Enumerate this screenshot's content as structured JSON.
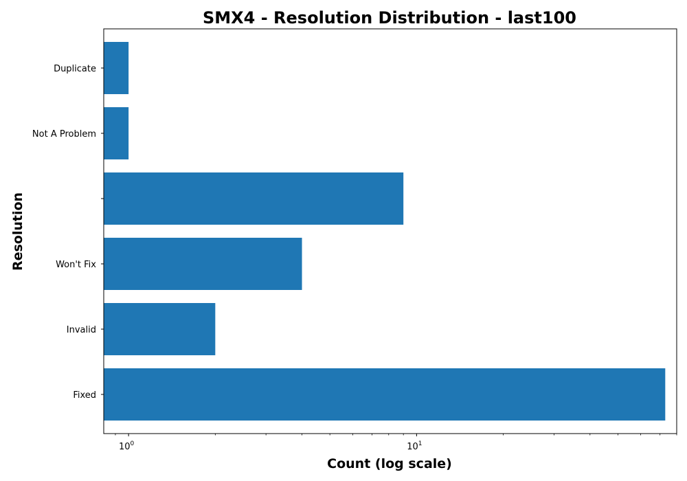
{
  "chart_data": {
    "type": "bar",
    "orientation": "horizontal",
    "title": "SMX4 - Resolution Distribution - last100",
    "xlabel": "Count (log scale)",
    "ylabel": "Resolution",
    "x_scale": "log",
    "xlim": [
      0.82,
      80
    ],
    "x_ticks": [
      {
        "value": 1,
        "base": "10",
        "exponent": "0"
      },
      {
        "value": 10,
        "base": "10",
        "exponent": "1"
      }
    ],
    "categories": [
      "Fixed",
      "Invalid",
      "Won't Fix",
      "",
      "Not A Problem",
      "Duplicate"
    ],
    "values": [
      73,
      2,
      4,
      9,
      1,
      1
    ],
    "bar_color": "#1f77b4",
    "grid": false
  }
}
